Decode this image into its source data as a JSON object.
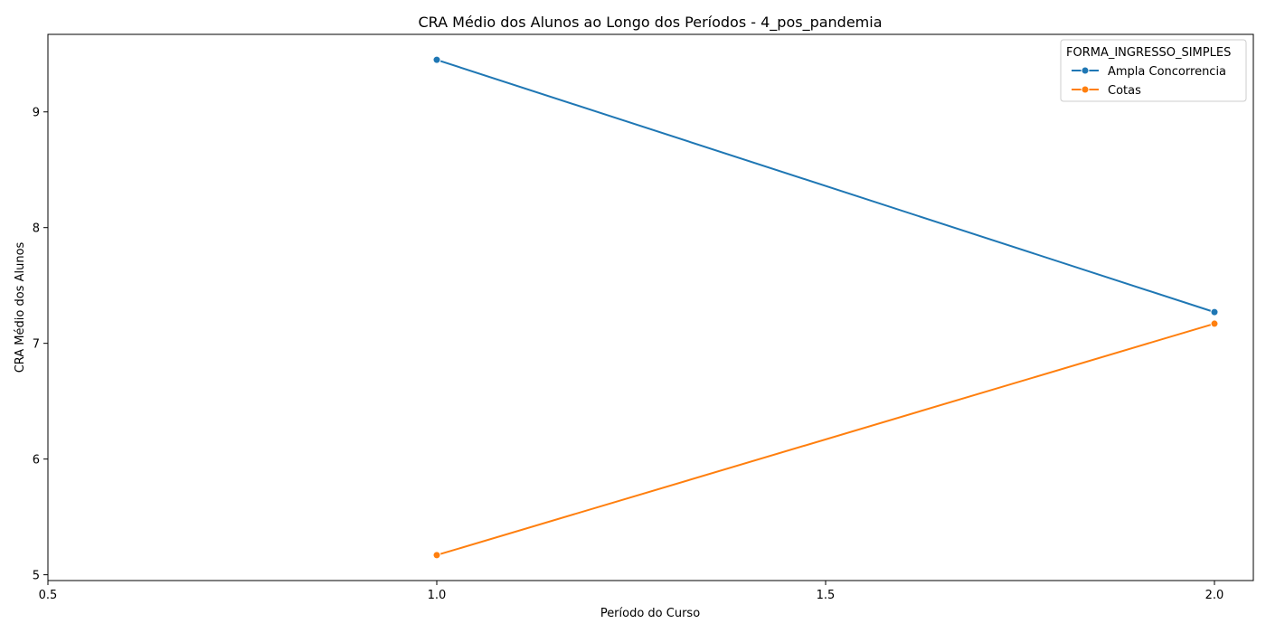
{
  "chart_data": {
    "type": "line",
    "title": "CRA Médio dos Alunos ao Longo dos Períodos - 4_pos_pandemia",
    "xlabel": "Período do Curso",
    "ylabel": "CRA Médio dos Alunos",
    "xlim": [
      0.5,
      2.05
    ],
    "ylim": [
      4.95,
      9.67
    ],
    "xticks": [
      0.5,
      1.0,
      1.5,
      2.0
    ],
    "xtick_labels": [
      "0.5",
      "1.0",
      "1.5",
      "2.0"
    ],
    "yticks": [
      5,
      6,
      7,
      8,
      9
    ],
    "ytick_labels": [
      "5",
      "6",
      "7",
      "8",
      "9"
    ],
    "grid": false,
    "legend": {
      "title": "FORMA_INGRESSO_SIMPLES",
      "placement": "upper-right"
    },
    "series": [
      {
        "name": "Ampla Concorrencia",
        "color": "#1f77b4",
        "marker": "circle",
        "x": [
          1.0,
          2.0
        ],
        "y": [
          9.45,
          7.27
        ]
      },
      {
        "name": "Cotas",
        "color": "#ff7f0e",
        "marker": "circle",
        "x": [
          1.0,
          2.0
        ],
        "y": [
          5.17,
          7.17
        ]
      }
    ]
  }
}
